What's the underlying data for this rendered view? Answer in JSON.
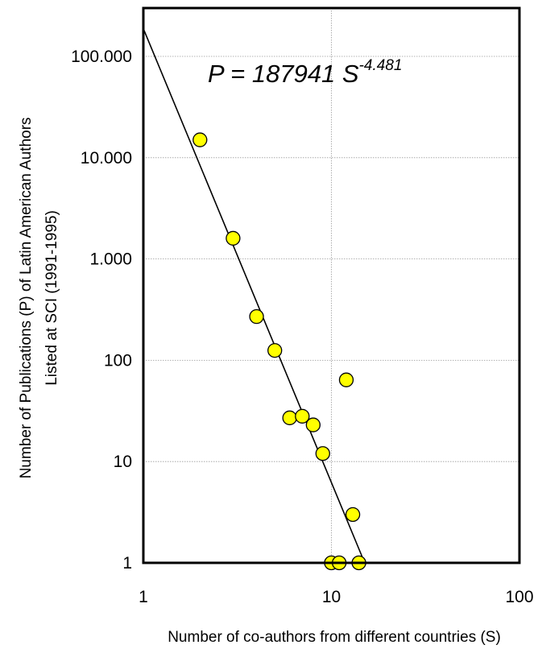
{
  "chart_data": {
    "type": "scatter",
    "title": "",
    "xlabel": "Number of co-authors from different countries  (S)",
    "ylabel_line1": "Number of Publications  (P) of Latin American Authors",
    "ylabel_line2": "Listed at SCI (1991-1995)",
    "xscale": "log",
    "yscale": "log",
    "xlim": [
      1,
      100
    ],
    "ylim": [
      1,
      300000
    ],
    "x_ticks": [
      1,
      10,
      100
    ],
    "x_tick_labels": [
      "1",
      "10",
      "100"
    ],
    "y_ticks": [
      1,
      10,
      100,
      1000,
      10000,
      100000
    ],
    "y_tick_labels": [
      "1",
      "10",
      "100",
      "1.000",
      "10.000",
      "100.000"
    ],
    "grid": true,
    "points": [
      {
        "x": 2,
        "y": 15000
      },
      {
        "x": 3,
        "y": 1600
      },
      {
        "x": 4,
        "y": 270
      },
      {
        "x": 5,
        "y": 125
      },
      {
        "x": 6,
        "y": 27
      },
      {
        "x": 7,
        "y": 28
      },
      {
        "x": 8,
        "y": 23
      },
      {
        "x": 9,
        "y": 12
      },
      {
        "x": 10,
        "y": 1
      },
      {
        "x": 11,
        "y": 1
      },
      {
        "x": 12,
        "y": 64
      },
      {
        "x": 13,
        "y": 3
      },
      {
        "x": 14,
        "y": 1
      }
    ],
    "fit": {
      "coefficient": 187941,
      "exponent": -4.481,
      "equation_main": "P = 187941 S",
      "equation_exponent": "-4.481"
    },
    "colors": {
      "marker_fill": "#ffff00",
      "marker_stroke": "#000000",
      "fit_line": "#000000",
      "grid": "#9a9a9a"
    }
  }
}
